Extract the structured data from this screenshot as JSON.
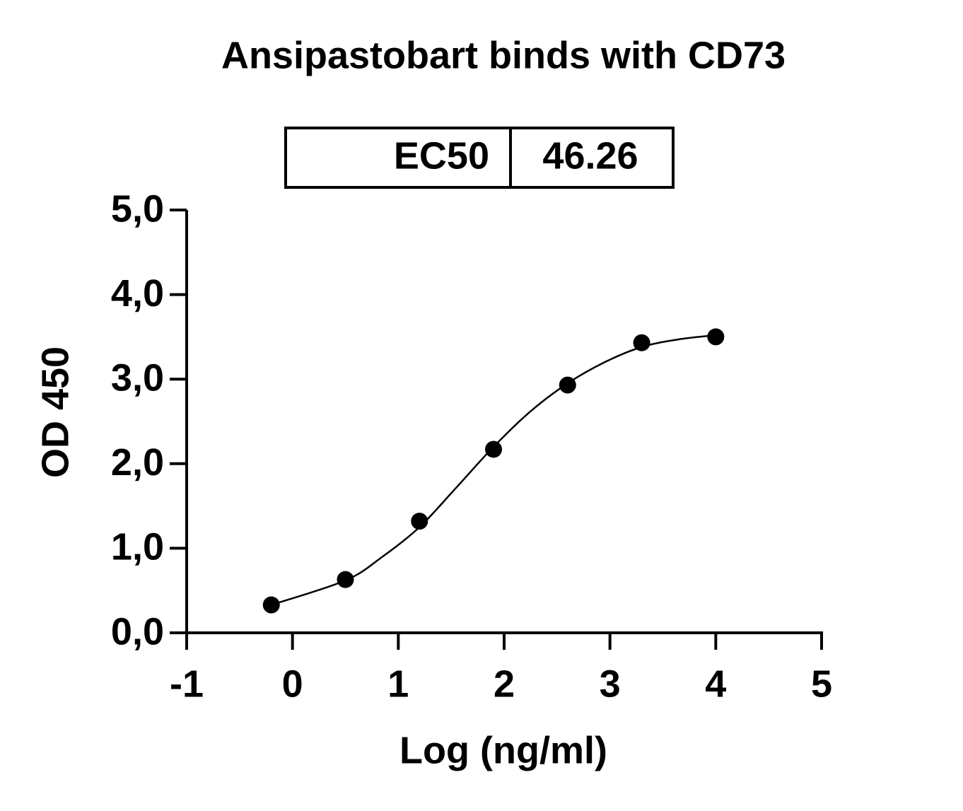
{
  "chart_data": {
    "type": "scatter",
    "title": "Ansipastobart binds with CD73",
    "x_label": "Log (ng/ml)",
    "y_label": "OD 450",
    "annotation": {
      "label": "EC50",
      "value": 46.26
    },
    "series": [
      {
        "name": "data",
        "mode": "markers",
        "color": "#000000",
        "x": [
          -0.2,
          0.5,
          1.2,
          1.9,
          2.6,
          3.3,
          4.0
        ],
        "values": [
          0.33,
          0.63,
          1.32,
          2.17,
          2.93,
          3.43,
          3.5
        ]
      },
      {
        "name": "fit",
        "mode": "line",
        "color": "#000000",
        "x": [
          -0.2,
          0.5,
          0.85,
          1.2,
          1.55,
          1.9,
          2.25,
          2.6,
          2.95,
          3.3,
          3.65,
          4.0
        ],
        "values": [
          0.33,
          0.62,
          0.9,
          1.25,
          1.72,
          2.2,
          2.62,
          2.95,
          3.2,
          3.38,
          3.47,
          3.52
        ]
      }
    ],
    "xlim": [
      -1,
      5
    ],
    "ylim": [
      0,
      5
    ],
    "xticks": [
      -1,
      0,
      1,
      2,
      3,
      4,
      5
    ],
    "yticks": [
      {
        "value": 0,
        "label": "0,0"
      },
      {
        "value": 1,
        "label": "1,0"
      },
      {
        "value": 2,
        "label": "2,0"
      },
      {
        "value": 3,
        "label": "3,0"
      },
      {
        "value": 4,
        "label": "4,0"
      },
      {
        "value": 5,
        "label": "5,0"
      }
    ]
  }
}
